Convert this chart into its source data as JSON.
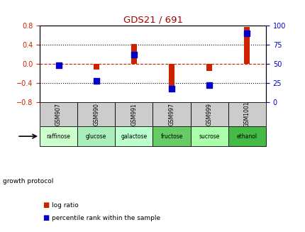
{
  "title": "GDS21 / 691",
  "samples": [
    "GSM907",
    "GSM990",
    "GSM991",
    "GSM997",
    "GSM999",
    "GSM1001"
  ],
  "protocols": [
    "raffinose",
    "glucose",
    "galactose",
    "fructose",
    "sucrose",
    "ethanol"
  ],
  "log_ratios": [
    -0.08,
    -0.12,
    0.42,
    -0.52,
    -0.15,
    0.77
  ],
  "percentile_ranks": [
    48,
    28,
    62,
    18,
    22,
    90
  ],
  "bar_color": "#cc2200",
  "dot_color": "#0000cc",
  "ylim_left": [
    -0.8,
    0.8
  ],
  "ylim_right": [
    0,
    100
  ],
  "left_yticks": [
    -0.8,
    -0.4,
    0,
    0.4,
    0.8
  ],
  "right_yticks": [
    0,
    25,
    50,
    75,
    100
  ],
  "protocol_colors": [
    "#ccffcc",
    "#aaeebb",
    "#bbffcc",
    "#66cc66",
    "#aaffaa",
    "#44bb44"
  ],
  "gsm_bg_color": "#cccccc",
  "legend_red": "log ratio",
  "legend_blue": "percentile rank within the sample",
  "growth_protocol_label": "growth protocol",
  "bar_width": 0.15,
  "dot_size": 30,
  "title_color": "#aa0000",
  "left_tick_color": "#cc2200",
  "right_tick_color": "#0000cc"
}
